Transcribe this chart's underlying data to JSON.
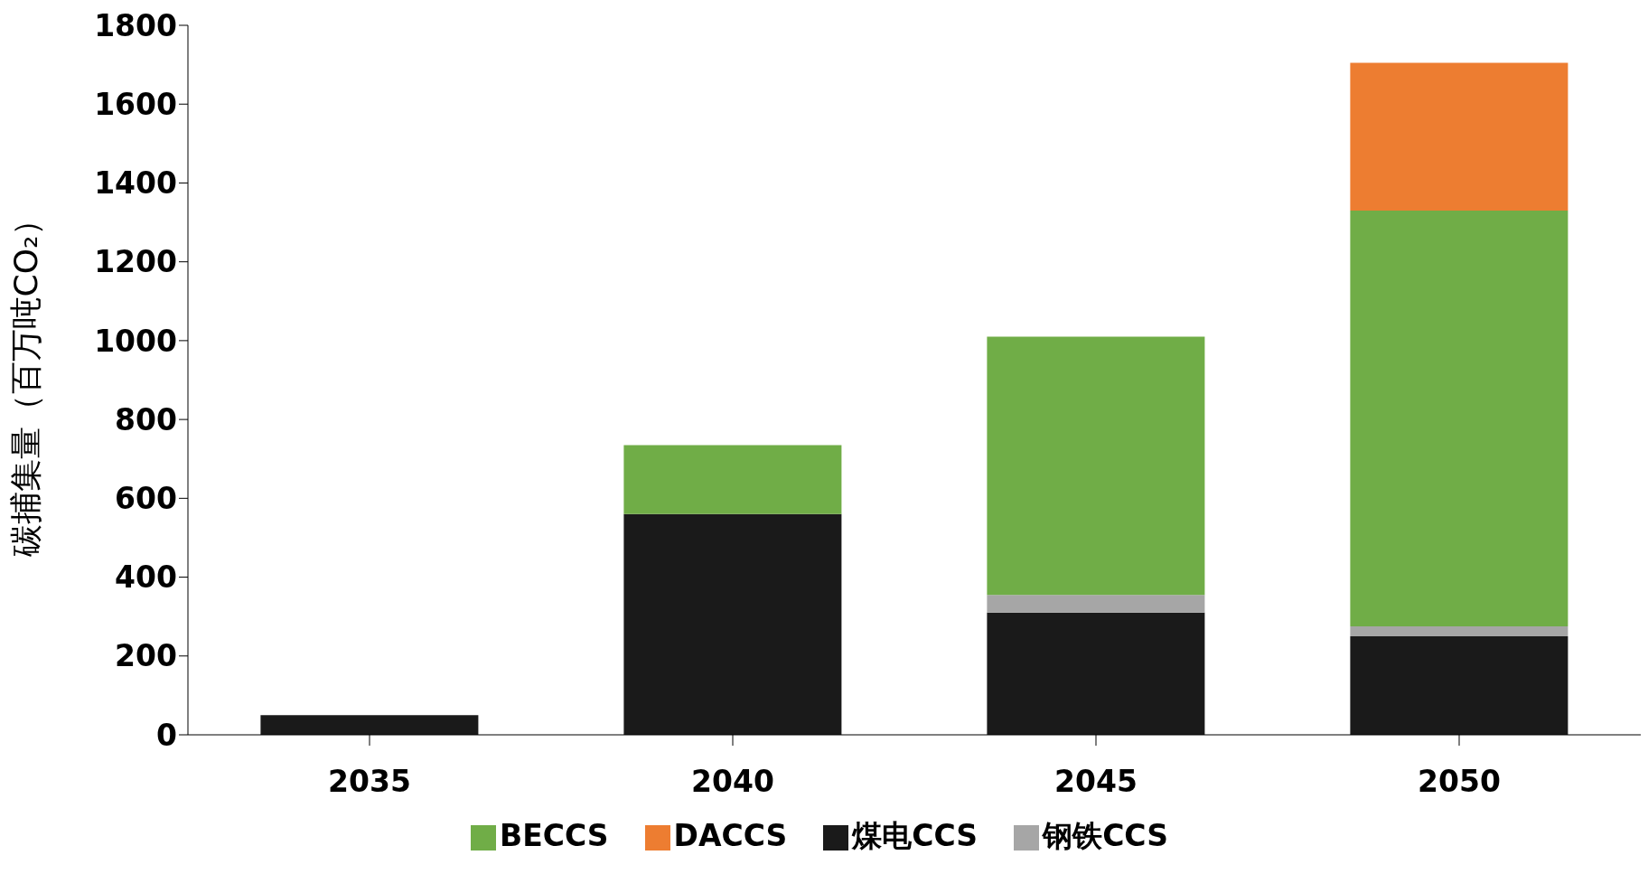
{
  "chart_data": {
    "type": "bar",
    "stacked": true,
    "ylabel": "碳捕集量（百万吨CO₂）",
    "categories": [
      "2035",
      "2040",
      "2045",
      "2050"
    ],
    "series": [
      {
        "name": "煤电CCS",
        "color": "#1a1a1a",
        "values": [
          50,
          560,
          310,
          250
        ]
      },
      {
        "name": "钢铁CCS",
        "color": "#a6a6a6",
        "values": [
          0,
          0,
          45,
          25
        ]
      },
      {
        "name": "BECCS",
        "color": "#70ad47",
        "values": [
          0,
          175,
          655,
          1055
        ]
      },
      {
        "name": "DACCS",
        "color": "#ed7d31",
        "values": [
          0,
          0,
          0,
          375
        ]
      }
    ],
    "ylim": [
      0,
      1800
    ],
    "yticks": [
      0,
      200,
      400,
      600,
      800,
      1000,
      1200,
      1400,
      1600,
      1800
    ],
    "grid": false,
    "legend": "bottom"
  }
}
